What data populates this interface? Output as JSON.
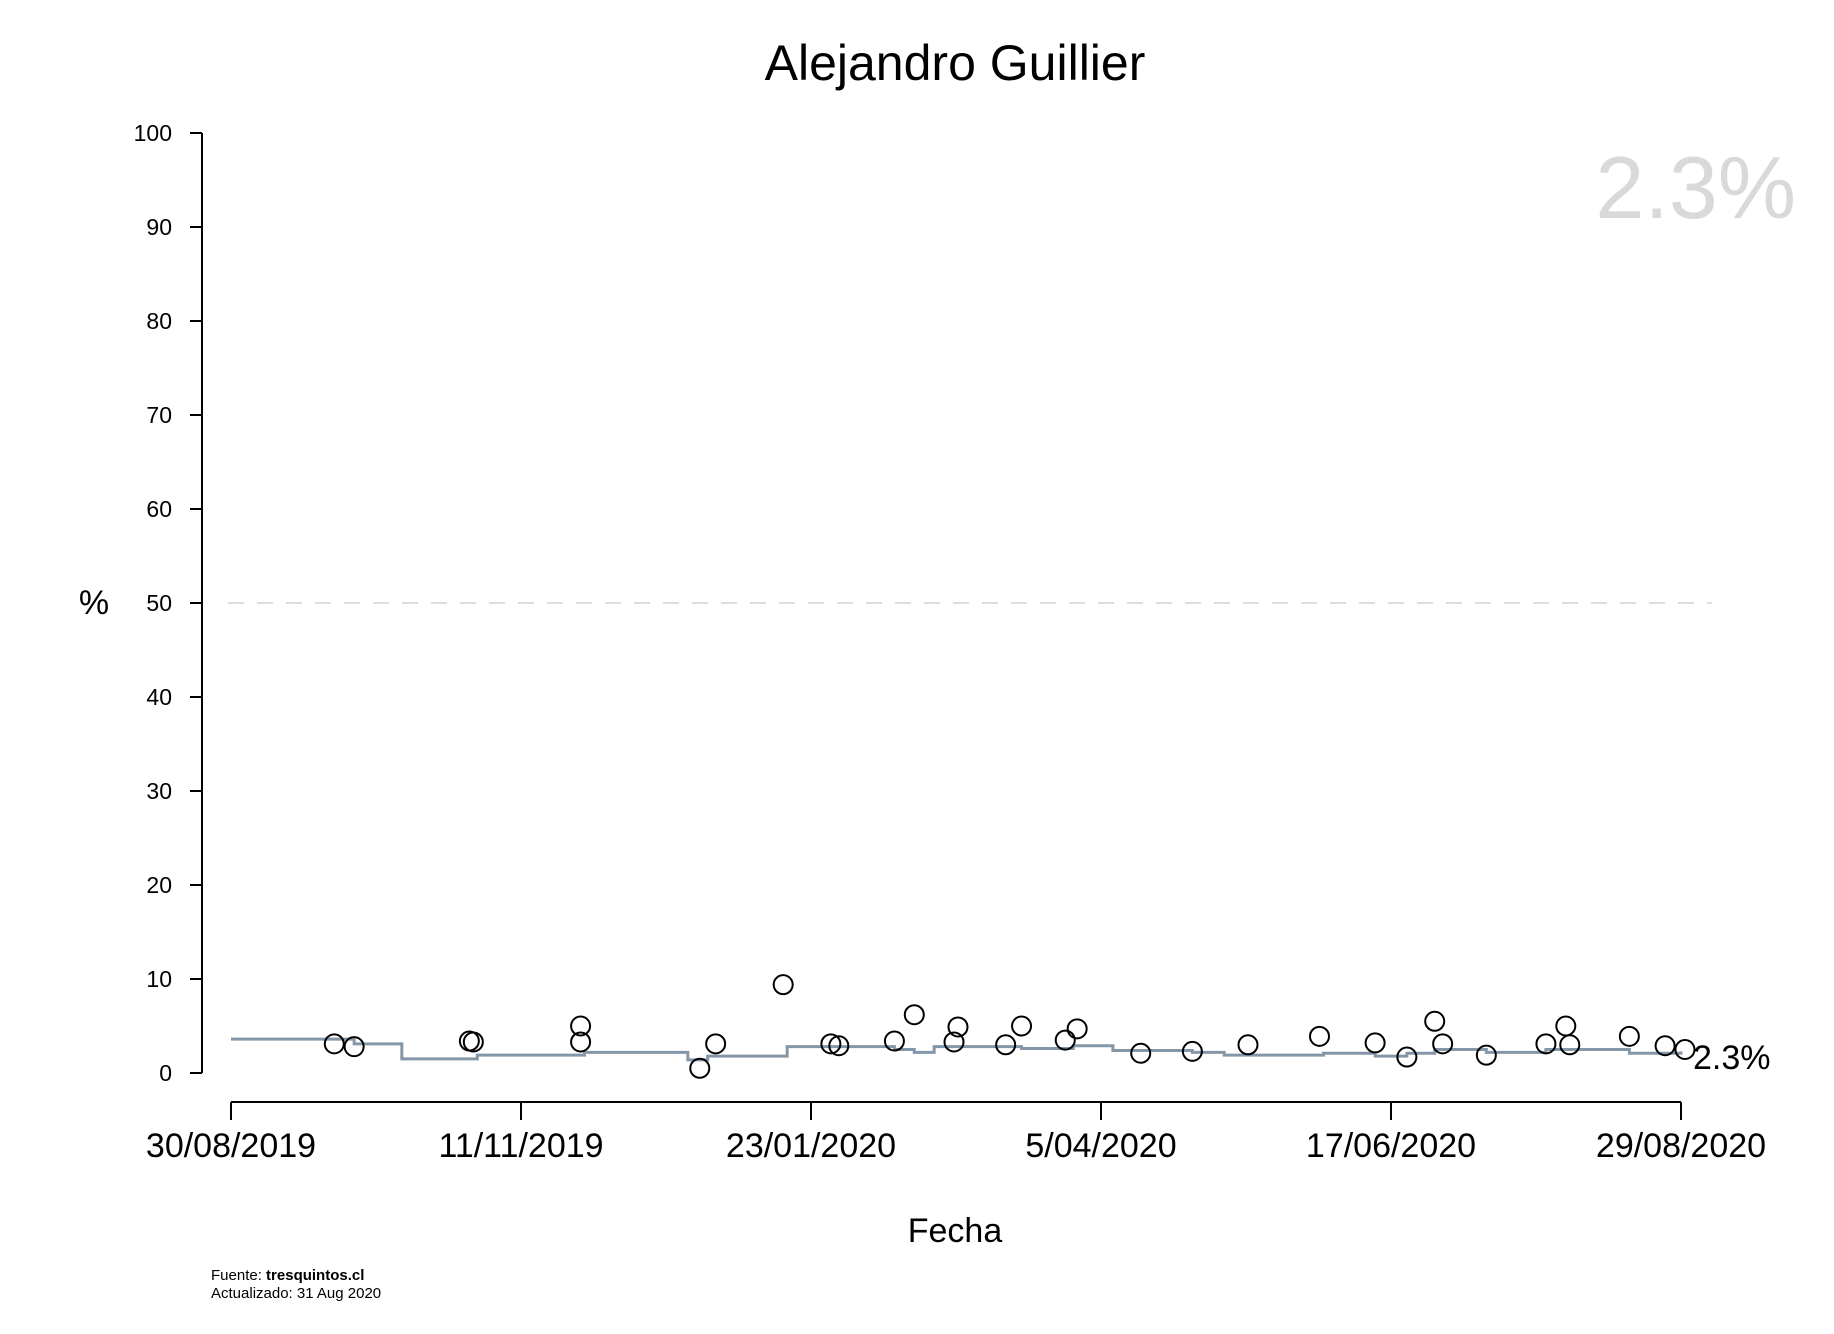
{
  "chart_data": {
    "type": "scatter",
    "title": "Alejandro Guillier",
    "xlabel": "Fecha",
    "ylabel": "%",
    "ylim": [
      0,
      100
    ],
    "yticks": [
      "0",
      "10",
      "20",
      "30",
      "40",
      "50",
      "60",
      "70",
      "80",
      "90",
      "100"
    ],
    "xlim": [
      "2019-08-30",
      "2020-08-29"
    ],
    "xticks": [
      {
        "date": "2019-08-30",
        "label": "30/08/2019"
      },
      {
        "date": "2019-11-11",
        "label": "11/11/2019"
      },
      {
        "date": "2020-01-23",
        "label": "23/01/2020"
      },
      {
        "date": "2020-04-05",
        "label": "5/04/2020"
      },
      {
        "date": "2020-06-17",
        "label": "17/06/2020"
      },
      {
        "date": "2020-08-29",
        "label": "29/08/2020"
      }
    ],
    "reference_line": {
      "y": 50,
      "style": "dashed",
      "color": "#dddddd"
    },
    "current_value_label": "2.3%",
    "end_label": "2.3%",
    "colors": {
      "trend": "#8497a8",
      "points": "#000000",
      "big_value": "#d9d9d9"
    },
    "points": [
      {
        "x": "2019-09-25",
        "y": 3.1
      },
      {
        "x": "2019-09-30",
        "y": 2.8
      },
      {
        "x": "2019-10-29",
        "y": 3.4
      },
      {
        "x": "2019-10-30",
        "y": 3.3
      },
      {
        "x": "2019-11-26",
        "y": 5.0
      },
      {
        "x": "2019-11-26",
        "y": 3.3
      },
      {
        "x": "2019-12-26",
        "y": 0.5
      },
      {
        "x": "2019-12-30",
        "y": 3.1
      },
      {
        "x": "2020-01-16",
        "y": 9.4
      },
      {
        "x": "2020-01-28",
        "y": 3.1
      },
      {
        "x": "2020-01-30",
        "y": 2.9
      },
      {
        "x": "2020-02-13",
        "y": 3.4
      },
      {
        "x": "2020-02-18",
        "y": 6.2
      },
      {
        "x": "2020-02-28",
        "y": 3.3
      },
      {
        "x": "2020-02-29",
        "y": 4.9
      },
      {
        "x": "2020-03-12",
        "y": 3.0
      },
      {
        "x": "2020-03-16",
        "y": 5.0
      },
      {
        "x": "2020-03-27",
        "y": 3.5
      },
      {
        "x": "2020-03-30",
        "y": 4.7
      },
      {
        "x": "2020-04-15",
        "y": 2.1
      },
      {
        "x": "2020-04-28",
        "y": 2.3
      },
      {
        "x": "2020-05-12",
        "y": 3.0
      },
      {
        "x": "2020-05-30",
        "y": 3.9
      },
      {
        "x": "2020-06-13",
        "y": 3.2
      },
      {
        "x": "2020-06-21",
        "y": 1.7
      },
      {
        "x": "2020-06-28",
        "y": 5.5
      },
      {
        "x": "2020-06-30",
        "y": 3.1
      },
      {
        "x": "2020-07-11",
        "y": 1.9
      },
      {
        "x": "2020-07-26",
        "y": 3.1
      },
      {
        "x": "2020-07-31",
        "y": 5.0
      },
      {
        "x": "2020-08-01",
        "y": 3.0
      },
      {
        "x": "2020-08-16",
        "y": 3.9
      },
      {
        "x": "2020-08-25",
        "y": 2.9
      },
      {
        "x": "2020-08-30",
        "y": 2.5
      }
    ],
    "trend": [
      {
        "x": "2019-08-30",
        "y": 3.6
      },
      {
        "x": "2019-09-30",
        "y": 3.1
      },
      {
        "x": "2019-10-12",
        "y": 1.5
      },
      {
        "x": "2019-10-31",
        "y": 1.9
      },
      {
        "x": "2019-11-27",
        "y": 2.2
      },
      {
        "x": "2019-12-23",
        "y": 1.4
      },
      {
        "x": "2019-12-28",
        "y": 1.8
      },
      {
        "x": "2020-01-17",
        "y": 2.8
      },
      {
        "x": "2020-02-13",
        "y": 2.5
      },
      {
        "x": "2020-02-18",
        "y": 2.2
      },
      {
        "x": "2020-02-23",
        "y": 2.8
      },
      {
        "x": "2020-03-16",
        "y": 2.6
      },
      {
        "x": "2020-03-29",
        "y": 2.9
      },
      {
        "x": "2020-04-08",
        "y": 2.4
      },
      {
        "x": "2020-04-28",
        "y": 2.2
      },
      {
        "x": "2020-05-06",
        "y": 1.9
      },
      {
        "x": "2020-05-31",
        "y": 2.1
      },
      {
        "x": "2020-06-13",
        "y": 1.8
      },
      {
        "x": "2020-06-21",
        "y": 2.1
      },
      {
        "x": "2020-06-28",
        "y": 2.5
      },
      {
        "x": "2020-07-11",
        "y": 2.2
      },
      {
        "x": "2020-07-26",
        "y": 2.5
      },
      {
        "x": "2020-08-16",
        "y": 2.1
      },
      {
        "x": "2020-08-29",
        "y": 2.3
      }
    ]
  },
  "footer": {
    "source_prefix": "Fuente: ",
    "source_name": "tresquintos.cl",
    "updated": "Actualizado: 31 Aug 2020"
  }
}
